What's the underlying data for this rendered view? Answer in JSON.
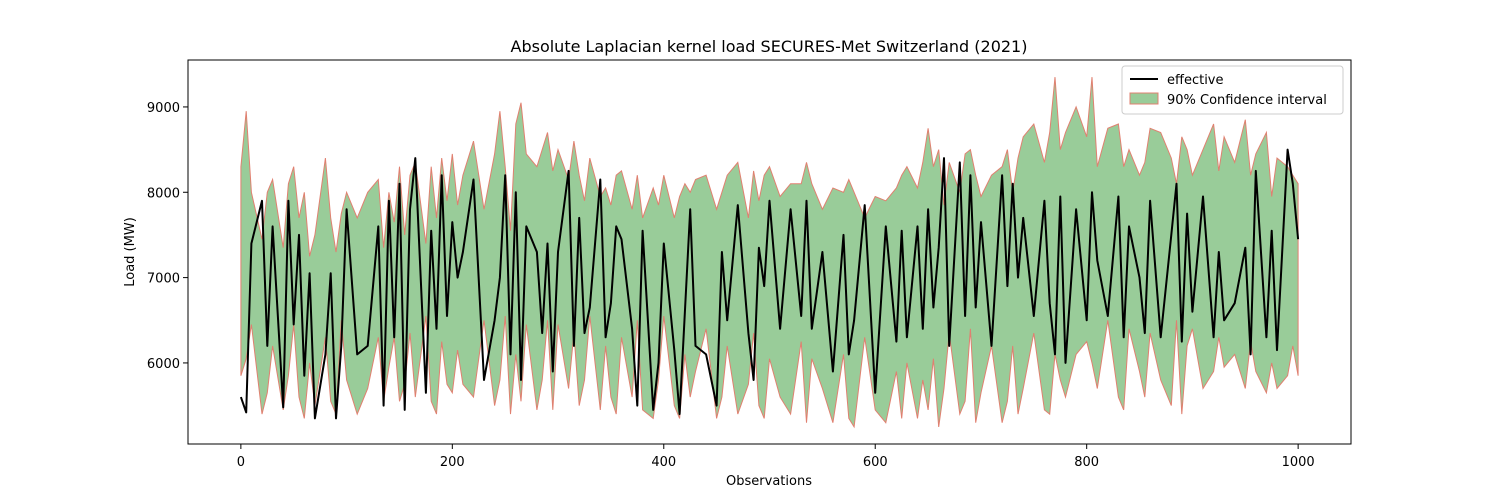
{
  "chart_data": {
    "type": "line",
    "title": "Absolute Laplacian kernel load SECURES-Met Switzerland (2021)",
    "xlabel": "Observations",
    "ylabel": "Load (MW)",
    "xlim": [
      -50,
      1050
    ],
    "ylim": [
      5050,
      9550
    ],
    "x_ticks": [
      0,
      200,
      400,
      600,
      800,
      1000
    ],
    "y_ticks": [
      6000,
      7000,
      8000,
      9000
    ],
    "legend": {
      "placement": "top-right",
      "entries": [
        "effective",
        "90% Confidence interval"
      ]
    },
    "colors": {
      "effective": "#000000",
      "ci_fill": "#99cc99",
      "ci_edge": "#e08070"
    },
    "series": [
      {
        "name": "effective",
        "x": [
          0,
          5,
          10,
          20,
          25,
          30,
          40,
          45,
          50,
          55,
          60,
          65,
          70,
          80,
          85,
          90,
          95,
          100,
          110,
          120,
          130,
          135,
          140,
          145,
          150,
          155,
          160,
          165,
          175,
          180,
          185,
          190,
          195,
          200,
          205,
          210,
          220,
          230,
          240,
          245,
          250,
          255,
          260,
          265,
          270,
          280,
          285,
          290,
          295,
          300,
          310,
          315,
          320,
          325,
          330,
          340,
          345,
          350,
          355,
          360,
          370,
          375,
          380,
          390,
          395,
          400,
          410,
          415,
          420,
          425,
          430,
          440,
          450,
          455,
          460,
          470,
          480,
          485,
          490,
          495,
          500,
          510,
          520,
          530,
          535,
          540,
          550,
          560,
          570,
          575,
          580,
          590,
          600,
          610,
          620,
          625,
          630,
          640,
          645,
          650,
          655,
          660,
          665,
          670,
          680,
          685,
          690,
          695,
          700,
          710,
          720,
          725,
          730,
          735,
          740,
          750,
          760,
          765,
          770,
          775,
          780,
          790,
          800,
          805,
          810,
          820,
          830,
          835,
          840,
          850,
          855,
          860,
          870,
          880,
          885,
          890,
          895,
          900,
          910,
          920,
          925,
          930,
          940,
          950,
          955,
          960,
          970,
          975,
          980,
          990,
          995,
          1000
        ],
        "values": [
          5600,
          5420,
          7400,
          7900,
          6200,
          7600,
          5480,
          7900,
          6450,
          7500,
          5850,
          7050,
          5350,
          6100,
          7050,
          5350,
          6200,
          7800,
          6100,
          6200,
          7600,
          5500,
          7900,
          6300,
          8100,
          5450,
          7800,
          8400,
          5650,
          7550,
          6400,
          8200,
          6550,
          7650,
          7000,
          7300,
          8150,
          5800,
          6500,
          7000,
          8200,
          6100,
          8000,
          5800,
          7600,
          7300,
          6350,
          7400,
          5900,
          7300,
          8250,
          6200,
          7700,
          6350,
          6650,
          8150,
          6300,
          6700,
          7600,
          7450,
          6400,
          5500,
          7550,
          5450,
          6000,
          7400,
          6150,
          5400,
          6600,
          7800,
          6200,
          6100,
          5500,
          7300,
          6500,
          7850,
          6350,
          5800,
          7350,
          6900,
          7900,
          6400,
          7800,
          6550,
          7900,
          6400,
          7300,
          5900,
          7500,
          6100,
          6500,
          7850,
          5650,
          7600,
          6250,
          7550,
          6300,
          7600,
          6400,
          7800,
          6650,
          7350,
          8400,
          6200,
          8350,
          6550,
          8200,
          6650,
          7650,
          6200,
          8200,
          6900,
          8100,
          7000,
          7700,
          6550,
          7900,
          6700,
          6100,
          7950,
          6000,
          7800,
          6500,
          8000,
          7200,
          6550,
          7950,
          6300,
          7600,
          7000,
          6350,
          7900,
          6300,
          7500,
          8100,
          6250,
          7750,
          6600,
          7950,
          6300,
          7300,
          6500,
          6700,
          7350,
          6100,
          8250,
          6300,
          7550,
          6150,
          8500,
          8100,
          7450
        ]
      },
      {
        "name": "90% Confidence interval",
        "x": [
          0,
          5,
          10,
          20,
          25,
          30,
          40,
          45,
          50,
          55,
          60,
          65,
          70,
          80,
          85,
          90,
          95,
          100,
          110,
          120,
          130,
          135,
          140,
          145,
          150,
          155,
          160,
          165,
          175,
          180,
          185,
          190,
          195,
          200,
          205,
          210,
          220,
          230,
          240,
          245,
          250,
          255,
          260,
          265,
          270,
          280,
          285,
          290,
          295,
          300,
          310,
          315,
          320,
          325,
          330,
          340,
          345,
          350,
          355,
          360,
          370,
          375,
          380,
          390,
          395,
          400,
          410,
          415,
          420,
          425,
          430,
          440,
          450,
          455,
          460,
          470,
          480,
          485,
          490,
          495,
          500,
          510,
          520,
          530,
          535,
          540,
          550,
          560,
          570,
          575,
          580,
          590,
          600,
          610,
          620,
          625,
          630,
          640,
          645,
          650,
          655,
          660,
          665,
          670,
          680,
          685,
          690,
          695,
          700,
          710,
          720,
          725,
          730,
          735,
          740,
          750,
          760,
          765,
          770,
          775,
          780,
          790,
          800,
          805,
          810,
          820,
          830,
          835,
          840,
          850,
          855,
          860,
          870,
          880,
          885,
          890,
          895,
          900,
          910,
          920,
          925,
          930,
          940,
          950,
          955,
          960,
          970,
          975,
          980,
          990,
          995,
          1000
        ],
        "upper": [
          8300,
          8950,
          8000,
          7450,
          8000,
          8150,
          7350,
          8100,
          8300,
          7700,
          8000,
          7250,
          7500,
          8400,
          7700,
          7300,
          7750,
          8000,
          7700,
          8000,
          8150,
          7350,
          8000,
          7650,
          8300,
          7500,
          8200,
          8350,
          7400,
          8300,
          7700,
          8400,
          7900,
          8450,
          7850,
          8200,
          8600,
          7800,
          8450,
          8950,
          8300,
          7550,
          8800,
          9050,
          8450,
          8300,
          8500,
          8700,
          8250,
          8500,
          8150,
          8600,
          8200,
          7900,
          8400,
          7950,
          8050,
          7850,
          8200,
          8250,
          7800,
          8200,
          7700,
          8050,
          7850,
          8200,
          7700,
          7950,
          8100,
          8000,
          8150,
          8200,
          7800,
          8000,
          8200,
          8350,
          7700,
          8250,
          7900,
          8200,
          8300,
          7950,
          8100,
          8100,
          8350,
          8100,
          7800,
          8050,
          8000,
          8150,
          8000,
          7700,
          7950,
          7900,
          8050,
          8200,
          8300,
          8050,
          8350,
          8750,
          8300,
          8500,
          7850,
          8350,
          8000,
          8450,
          8500,
          8200,
          7950,
          8200,
          8300,
          8500,
          8000,
          8400,
          8650,
          8800,
          8350,
          8700,
          9350,
          8500,
          8700,
          9000,
          8650,
          9350,
          8300,
          8750,
          8800,
          8300,
          8500,
          8200,
          8350,
          8750,
          8700,
          8400,
          8100,
          8650,
          8500,
          8200,
          8500,
          8800,
          8250,
          8650,
          8350,
          8850,
          8200,
          8450,
          8700,
          7950,
          8400,
          8300,
          8200,
          8100
        ],
        "lower": [
          5850,
          6050,
          6450,
          5400,
          5650,
          6200,
          5450,
          5850,
          6450,
          5600,
          5350,
          6000,
          5500,
          6300,
          5550,
          5400,
          6500,
          5800,
          5400,
          5700,
          6300,
          5550,
          5950,
          6300,
          5550,
          5750,
          6350,
          5600,
          6550,
          5550,
          5400,
          6250,
          5750,
          5650,
          6150,
          5750,
          5600,
          6500,
          5500,
          5800,
          6550,
          5400,
          6100,
          5550,
          6450,
          5450,
          5800,
          6500,
          5450,
          6450,
          5700,
          6350,
          5500,
          5800,
          6550,
          5450,
          6200,
          5600,
          5400,
          6300,
          5600,
          6500,
          5450,
          5350,
          5800,
          6550,
          5500,
          5350,
          6100,
          5600,
          5900,
          6400,
          5350,
          5600,
          6200,
          5400,
          5750,
          6350,
          5500,
          5350,
          6050,
          5600,
          5400,
          6250,
          5300,
          6050,
          5700,
          5300,
          6100,
          5350,
          5250,
          6300,
          5450,
          5300,
          5900,
          5350,
          6000,
          5350,
          5800,
          5450,
          6050,
          5250,
          5700,
          6350,
          5400,
          5550,
          6400,
          5300,
          5650,
          6200,
          5300,
          5550,
          6200,
          5400,
          5700,
          6350,
          5450,
          5400,
          6100,
          5800,
          5600,
          6100,
          6250,
          6000,
          5700,
          6500,
          5600,
          5450,
          6400,
          5900,
          5600,
          6350,
          5800,
          5500,
          6500,
          5400,
          6200,
          6400,
          5700,
          5900,
          6300,
          5950,
          6100,
          5700,
          6250,
          5900,
          5650,
          6000,
          5700,
          5850,
          6200,
          5850
        ]
      }
    ]
  }
}
